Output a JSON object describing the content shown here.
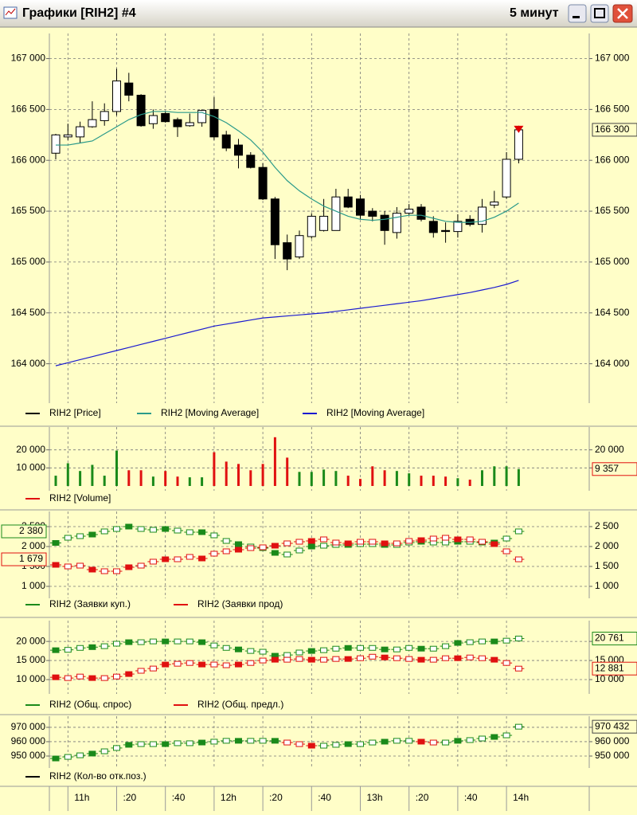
{
  "window": {
    "title": "Графики [RIH2] #4",
    "timeframe": "5 минут"
  },
  "x_axis": {
    "categories": [
      null,
      "11h",
      null,
      null,
      null,
      ":20",
      null,
      null,
      null,
      ":40",
      null,
      null,
      null,
      "12h",
      null,
      null,
      null,
      ":20",
      null,
      null,
      null,
      ":40",
      null,
      null,
      null,
      "13h",
      null,
      null,
      null,
      ":20",
      null,
      null,
      null,
      ":40",
      null,
      null,
      null,
      "14h",
      null
    ]
  },
  "chart_data": [
    {
      "type": "candlestick",
      "grid": true,
      "ylim": [
        163660,
        167200
      ],
      "yticks": [
        {
          "value": 164000,
          "label": "164 000"
        },
        {
          "value": 164500,
          "label": "164 500"
        },
        {
          "value": 165000,
          "label": "165 000"
        },
        {
          "value": 165500,
          "label": "165 500"
        },
        {
          "value": 166000,
          "label": "166 000"
        },
        {
          "value": 166500,
          "label": "166 500"
        },
        {
          "value": 167000,
          "label": "167 000"
        }
      ],
      "series": [
        {
          "name": "RIH2 [Price]",
          "color": "#000000",
          "marker_color": "#e00000",
          "open": [
            166070,
            166230,
            166230,
            166330,
            166390,
            166480,
            166760,
            166640,
            166360,
            166460,
            166400,
            166340,
            166370,
            166500,
            166250,
            166150,
            166050,
            165930,
            165620,
            165190,
            165050,
            165250,
            165310,
            165310,
            165640,
            165620,
            165500,
            165460,
            165290,
            165480,
            165540,
            165400,
            165310,
            165300,
            165420,
            165370,
            165560,
            165640,
            166010
          ],
          "high": [
            166260,
            166360,
            166380,
            166580,
            166560,
            166900,
            166860,
            166650,
            166500,
            166480,
            166420,
            166460,
            166500,
            166620,
            166290,
            166210,
            166080,
            165970,
            165640,
            165270,
            165310,
            165480,
            165620,
            165720,
            165720,
            165660,
            165530,
            165500,
            165540,
            165570,
            165570,
            165450,
            165390,
            165470,
            165460,
            165620,
            165700,
            166080,
            166340
          ],
          "low": [
            166010,
            166200,
            166170,
            166320,
            166340,
            166440,
            166580,
            166330,
            166310,
            166370,
            166230,
            166330,
            166330,
            166200,
            166090,
            165920,
            165920,
            165610,
            165030,
            164920,
            165030,
            165230,
            165300,
            165310,
            165530,
            165420,
            165400,
            165170,
            165230,
            165460,
            165400,
            165240,
            165190,
            165240,
            165350,
            165290,
            165530,
            165620,
            165970
          ],
          "close": [
            166250,
            166250,
            166330,
            166400,
            166480,
            166780,
            166640,
            166340,
            166440,
            166380,
            166330,
            166370,
            166490,
            166230,
            166120,
            166050,
            165930,
            165620,
            165170,
            165030,
            165260,
            165450,
            165450,
            165640,
            165540,
            165460,
            165450,
            165310,
            165480,
            165520,
            165420,
            165290,
            165300,
            165400,
            165370,
            165540,
            165590,
            166010,
            166300
          ],
          "value_label": {
            "value": 166300,
            "label": "166 300"
          }
        },
        {
          "name": "RIH2 [Moving Average]",
          "color": "#2a9a8a",
          "values": [
            166150,
            166150,
            166170,
            166190,
            166260,
            166330,
            166400,
            166450,
            166480,
            166480,
            166470,
            166470,
            166470,
            166430,
            166370,
            166290,
            166200,
            166080,
            165930,
            165800,
            165700,
            165620,
            165550,
            165500,
            165450,
            165420,
            165410,
            165420,
            165440,
            165460,
            165460,
            165430,
            165400,
            165390,
            165390,
            165400,
            165440,
            165500,
            165580
          ]
        },
        {
          "name": "RIH2 [Moving Average]",
          "color": "#1a1ad0",
          "values": [
            163980,
            164010,
            164040,
            164070,
            164100,
            164130,
            164160,
            164190,
            164220,
            164250,
            164280,
            164310,
            164340,
            164370,
            164390,
            164410,
            164430,
            164450,
            164460,
            164470,
            164480,
            164490,
            164500,
            164515,
            164530,
            164545,
            164560,
            164575,
            164590,
            164605,
            164620,
            164640,
            164660,
            164680,
            164700,
            164725,
            164750,
            164780,
            164820
          ]
        }
      ]
    },
    {
      "type": "bar",
      "grid": true,
      "ylim": [
        0,
        30000
      ],
      "yticks": [
        {
          "value": 10000,
          "label": "10 000"
        },
        {
          "value": 20000,
          "label": "20 000"
        }
      ],
      "series": [
        {
          "name": "RIH2 [Volume]",
          "color": "#e01010",
          "up_color": "#1a8a1a",
          "values": [
            5700,
            12600,
            8300,
            11700,
            5700,
            19600,
            8700,
            8700,
            5200,
            8300,
            5200,
            4800,
            4800,
            18700,
            13500,
            12200,
            8700,
            12200,
            27000,
            15700,
            7800,
            7800,
            9100,
            8300,
            5700,
            3900,
            10900,
            8700,
            8300,
            7000,
            5700,
            5700,
            5200,
            4300,
            3500,
            8700,
            10900,
            10900,
            9357
          ],
          "value_label": {
            "value": 9357,
            "label": "9 357"
          }
        }
      ]
    },
    {
      "type": "dash",
      "grid": true,
      "ylim": [
        820,
        2760
      ],
      "yticks": [
        {
          "value": 1000,
          "label": "1 000"
        },
        {
          "value": 1500,
          "label": "1 500"
        },
        {
          "value": 2000,
          "label": "2 000"
        },
        {
          "value": 2500,
          "label": "2 500"
        }
      ],
      "series": [
        {
          "name": "RIH2 (Заявки куп.)",
          "color": "#1a8a1a",
          "values": [
            2090,
            2220,
            2260,
            2300,
            2380,
            2440,
            2500,
            2440,
            2420,
            2440,
            2400,
            2360,
            2360,
            2280,
            2140,
            2060,
            2000,
            1960,
            1840,
            1800,
            1900,
            2000,
            2020,
            2040,
            2040,
            2060,
            2060,
            2040,
            2040,
            2100,
            2120,
            2100,
            2100,
            2120,
            2120,
            2100,
            2100,
            2200,
            2380
          ],
          "value_label": {
            "value": 2380,
            "label": "2 380"
          }
        },
        {
          "name": "RIH2 (Заявки прод)",
          "color": "#e01010",
          "values": [
            1540,
            1500,
            1520,
            1420,
            1380,
            1380,
            1480,
            1520,
            1620,
            1680,
            1680,
            1740,
            1700,
            1820,
            1880,
            1920,
            1960,
            1980,
            2020,
            2080,
            2120,
            2140,
            2180,
            2100,
            2080,
            2120,
            2120,
            2080,
            2080,
            2140,
            2160,
            2200,
            2220,
            2180,
            2180,
            2120,
            2060,
            1880,
            1679
          ],
          "value_label": {
            "value": 1679,
            "label": "1 679"
          }
        }
      ]
    },
    {
      "type": "dash",
      "grid": true,
      "ylim": [
        7500,
        24200
      ],
      "yticks": [
        {
          "value": 10000,
          "label": "10 000"
        },
        {
          "value": 15000,
          "label": "15 000"
        },
        {
          "value": 20000,
          "label": "20 000"
        }
      ],
      "series": [
        {
          "name": "RIH2 (Общ. спрос)",
          "color": "#1a8a1a",
          "values": [
            17700,
            17800,
            18300,
            18500,
            18750,
            19400,
            19800,
            19800,
            20000,
            20000,
            20000,
            20000,
            19800,
            18950,
            18300,
            17900,
            17500,
            17300,
            16250,
            16450,
            17100,
            17500,
            17700,
            18100,
            18300,
            18300,
            18300,
            17900,
            17900,
            18300,
            18100,
            18100,
            18750,
            19600,
            19800,
            20000,
            20000,
            20200,
            20761
          ],
          "value_label": {
            "value": 20761,
            "label": "20 761"
          }
        },
        {
          "name": "RIH2 (Общ. предл.)",
          "color": "#e01010",
          "values": [
            10600,
            10400,
            10800,
            10400,
            10400,
            10800,
            11450,
            12300,
            12900,
            13950,
            14150,
            14350,
            13950,
            13950,
            13750,
            13950,
            14350,
            15000,
            15200,
            15200,
            15400,
            15200,
            15200,
            15400,
            15400,
            15600,
            16000,
            15800,
            15600,
            15400,
            15200,
            15200,
            15600,
            15600,
            15800,
            15600,
            15200,
            14350,
            12881
          ],
          "value_label": {
            "value": 12881,
            "label": "12 881"
          }
        }
      ]
    },
    {
      "type": "dash",
      "grid": true,
      "ylim": [
        945000,
        974400
      ],
      "yticks": [
        {
          "value": 950000,
          "label": "950 000"
        },
        {
          "value": 960000,
          "label": "960 000"
        },
        {
          "value": 970000,
          "label": "970 000"
        }
      ],
      "series": [
        {
          "name": "RIH2 (Кол-во отк.поз.)",
          "color": "#000000",
          "up_color": "#1a8a1a",
          "down_color": "#e01010",
          "values": [
            948300,
            949400,
            950500,
            951700,
            953300,
            955600,
            957800,
            958300,
            958300,
            958300,
            958900,
            958900,
            959400,
            960000,
            960600,
            960600,
            960600,
            960600,
            960600,
            959400,
            958300,
            957200,
            957200,
            957800,
            958300,
            958300,
            959400,
            960000,
            960600,
            960600,
            960000,
            959400,
            959400,
            960600,
            961100,
            962200,
            963300,
            964400,
            970432
          ],
          "value_label": {
            "value": 970432,
            "label": "970 432"
          }
        }
      ]
    }
  ]
}
